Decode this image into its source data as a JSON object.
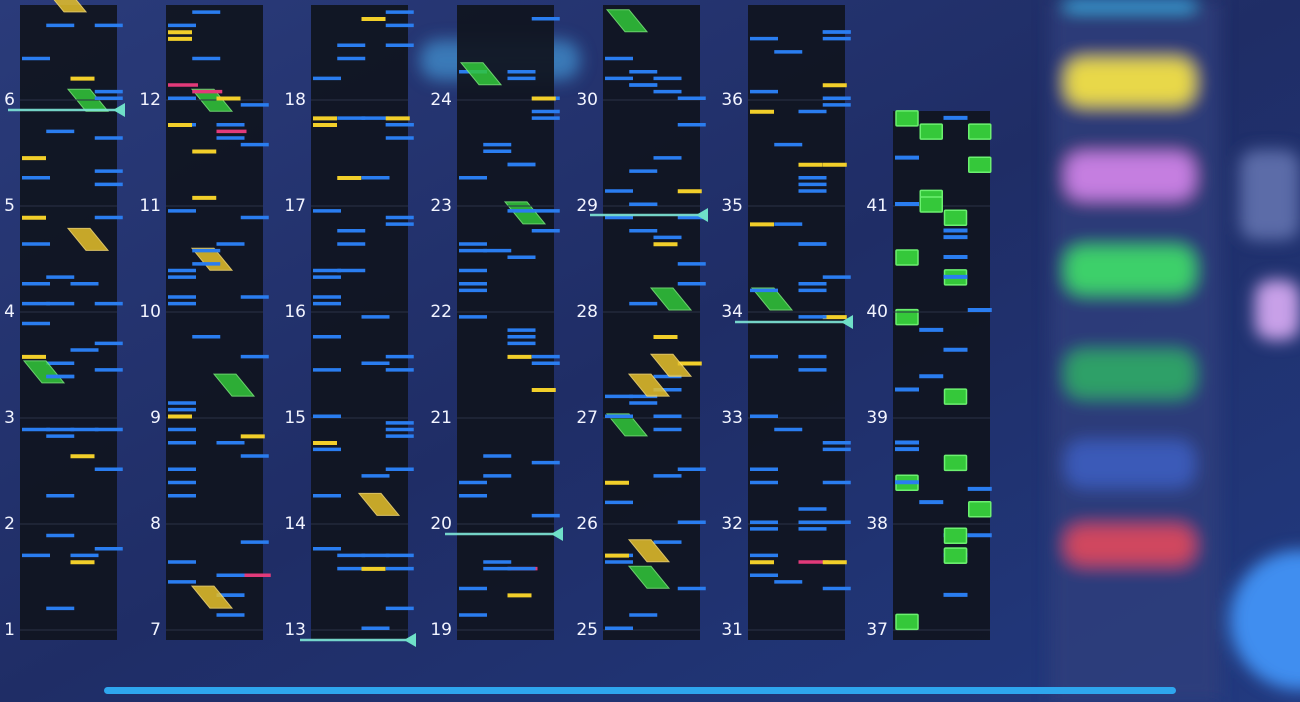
{
  "columns": [
    {
      "measures": [
        1,
        2,
        3,
        4,
        5,
        6
      ]
    },
    {
      "measures": [
        7,
        8,
        9,
        10,
        11,
        12
      ]
    },
    {
      "measures": [
        13,
        14,
        15,
        16,
        17,
        18
      ]
    },
    {
      "measures": [
        19,
        20,
        21,
        22,
        23,
        24
      ]
    },
    {
      "measures": [
        25,
        26,
        27,
        28,
        29,
        30
      ]
    },
    {
      "measures": [
        31,
        32,
        33,
        34,
        35,
        36
      ]
    },
    {
      "measures": [
        37,
        38,
        39,
        40,
        41
      ]
    }
  ]
}
